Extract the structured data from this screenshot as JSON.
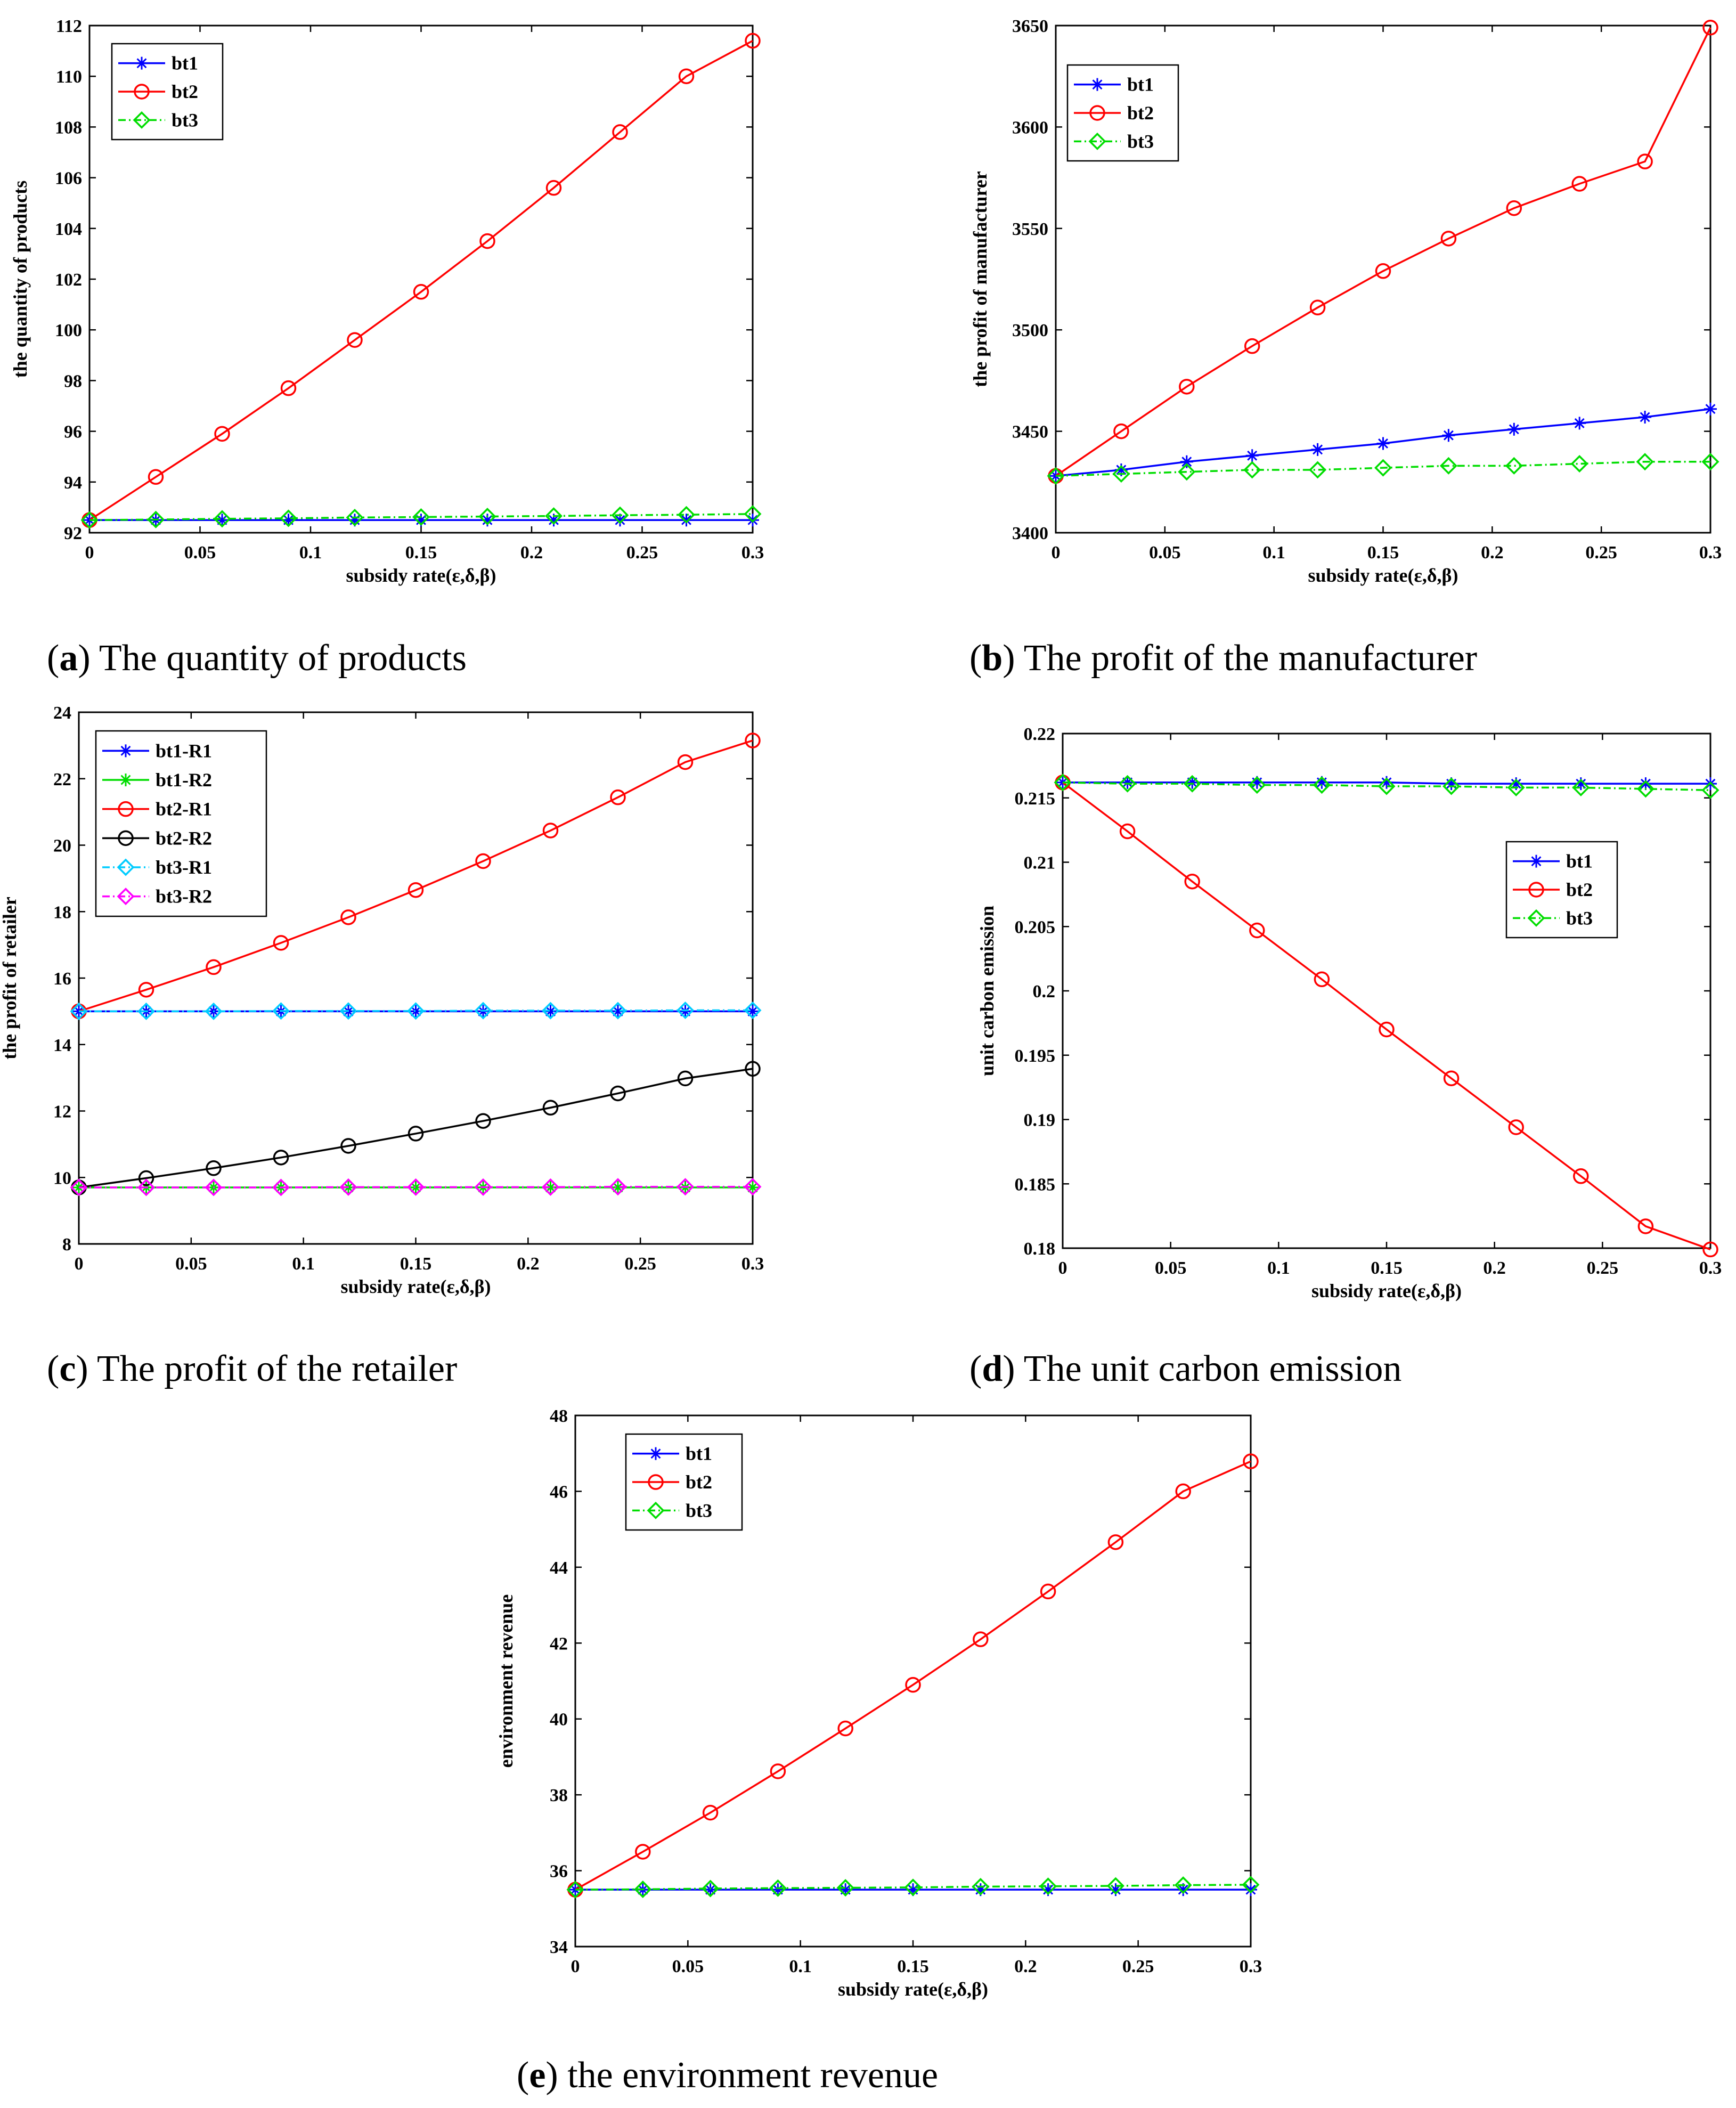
{
  "chart_data": [
    {
      "id": "a",
      "type": "line",
      "caption_letter": "a",
      "caption_text": "The quantity of products",
      "xlabel": "subsidy rate(ε,δ,β)",
      "ylabel": "the quantity of products",
      "xlim": [
        0,
        0.3
      ],
      "ylim": [
        92,
        112
      ],
      "xticks": [
        0,
        0.05,
        0.1,
        0.15,
        0.2,
        0.25,
        0.3
      ],
      "xtick_labels": [
        "0",
        "0.05",
        "0.1",
        "0.15",
        "0.2",
        "0.25",
        "0.3"
      ],
      "yticks": [
        92,
        94,
        96,
        98,
        100,
        102,
        104,
        106,
        108,
        110,
        112
      ],
      "ytick_labels": [
        "92",
        "94",
        "96",
        "98",
        "100",
        "102",
        "104",
        "106",
        "108",
        "110",
        "112"
      ],
      "legend_position": "top-left",
      "x": [
        0,
        0.03,
        0.06,
        0.09,
        0.12,
        0.15,
        0.18,
        0.21,
        0.24,
        0.27,
        0.3
      ],
      "series": [
        {
          "name": "bt1",
          "color": "#0000ff",
          "marker": "star",
          "dash": "solid",
          "values": [
            92.5,
            92.5,
            92.5,
            92.5,
            92.5,
            92.5,
            92.5,
            92.5,
            92.5,
            92.5,
            92.5
          ]
        },
        {
          "name": "bt2",
          "color": "#ff0000",
          "marker": "circle",
          "dash": "solid",
          "values": [
            92.5,
            94.2,
            95.9,
            97.7,
            99.6,
            101.5,
            103.5,
            105.6,
            107.8,
            110.0,
            111.4
          ]
        },
        {
          "name": "bt3",
          "color": "#00dd00",
          "marker": "diamond",
          "dash": "dashdot",
          "values": [
            92.5,
            92.52,
            92.55,
            92.57,
            92.6,
            92.62,
            92.64,
            92.66,
            92.69,
            92.71,
            92.74
          ]
        }
      ]
    },
    {
      "id": "b",
      "type": "line",
      "caption_letter": "b",
      "caption_text": "The profit of the manufacturer",
      "xlabel": "subsidy rate(ε,δ,β)",
      "ylabel": "the profit of manufacturer",
      "xlim": [
        0,
        0.3
      ],
      "ylim": [
        3400,
        3650
      ],
      "xticks": [
        0,
        0.05,
        0.1,
        0.15,
        0.2,
        0.25,
        0.3
      ],
      "xtick_labels": [
        "0",
        "0.05",
        "0.1",
        "0.15",
        "0.2",
        "0.25",
        "0.3"
      ],
      "yticks": [
        3400,
        3450,
        3500,
        3550,
        3600,
        3650
      ],
      "ytick_labels": [
        "3400",
        "3450",
        "3500",
        "3550",
        "3600",
        "3650"
      ],
      "legend_position": "top-left",
      "x": [
        0,
        0.03,
        0.06,
        0.09,
        0.12,
        0.15,
        0.18,
        0.21,
        0.24,
        0.27,
        0.3
      ],
      "series": [
        {
          "name": "bt1",
          "color": "#0000ff",
          "marker": "star",
          "dash": "solid",
          "values": [
            3428,
            3431,
            3435,
            3438,
            3441,
            3444,
            3448,
            3451,
            3454,
            3457,
            3461
          ]
        },
        {
          "name": "bt2",
          "color": "#ff0000",
          "marker": "circle",
          "dash": "solid",
          "values": [
            3428,
            3450,
            3472,
            3492,
            3511,
            3529,
            3545,
            3560,
            3572,
            3583,
            3649
          ]
        },
        {
          "name": "bt3",
          "color": "#00dd00",
          "marker": "diamond",
          "dash": "dashdot",
          "values": [
            3428,
            3429,
            3430,
            3431,
            3431,
            3432,
            3433,
            3433,
            3434,
            3435,
            3435
          ]
        }
      ]
    },
    {
      "id": "c",
      "type": "line",
      "caption_letter": "c",
      "caption_text": "The profit of the retailer",
      "xlabel": "subsidy rate(ε,δ,β)",
      "ylabel": "the profit of retailer",
      "xlim": [
        0,
        0.3
      ],
      "ylim": [
        8,
        24
      ],
      "xticks": [
        0,
        0.05,
        0.1,
        0.15,
        0.2,
        0.25,
        0.3
      ],
      "xtick_labels": [
        "0",
        "0.05",
        "0.1",
        "0.15",
        "0.2",
        "0.25",
        "0.3"
      ],
      "yticks": [
        8,
        10,
        12,
        14,
        16,
        18,
        20,
        22,
        24
      ],
      "ytick_labels": [
        "8",
        "10",
        "12",
        "14",
        "16",
        "18",
        "20",
        "22",
        "24"
      ],
      "legend_position": "top-left",
      "x": [
        0,
        0.03,
        0.06,
        0.09,
        0.12,
        0.15,
        0.18,
        0.21,
        0.24,
        0.27,
        0.3
      ],
      "series": [
        {
          "name": "bt1-R1",
          "color": "#0000ff",
          "marker": "star",
          "dash": "solid",
          "values": [
            15.0,
            15.0,
            15.0,
            15.0,
            15.0,
            15.0,
            15.0,
            15.0,
            15.0,
            15.0,
            15.0
          ]
        },
        {
          "name": "bt1-R2",
          "color": "#00dd00",
          "marker": "star",
          "dash": "solid",
          "values": [
            9.7,
            9.7,
            9.7,
            9.7,
            9.7,
            9.7,
            9.7,
            9.7,
            9.7,
            9.7,
            9.7
          ]
        },
        {
          "name": "bt2-R1",
          "color": "#ff0000",
          "marker": "circle",
          "dash": "solid",
          "values": [
            15.0,
            15.65,
            16.33,
            17.06,
            17.83,
            18.65,
            19.52,
            20.44,
            21.44,
            22.5,
            23.15
          ]
        },
        {
          "name": "bt2-R2",
          "color": "#000000",
          "marker": "circle",
          "dash": "solid",
          "values": [
            9.7,
            9.98,
            10.28,
            10.6,
            10.95,
            11.32,
            11.7,
            12.1,
            12.53,
            12.98,
            13.27
          ]
        },
        {
          "name": "bt3-R1",
          "color": "#00ccff",
          "marker": "diamond",
          "dash": "dashdot",
          "values": [
            15.0,
            15.0,
            15.0,
            15.01,
            15.01,
            15.01,
            15.02,
            15.02,
            15.02,
            15.03,
            15.03
          ]
        },
        {
          "name": "bt3-R2",
          "color": "#ff00ff",
          "marker": "diamond",
          "dash": "dashdot",
          "values": [
            9.7,
            9.7,
            9.7,
            9.7,
            9.71,
            9.71,
            9.71,
            9.71,
            9.72,
            9.72,
            9.72
          ]
        }
      ]
    },
    {
      "id": "d",
      "type": "line",
      "caption_letter": "d",
      "caption_text": "The unit carbon emission",
      "xlabel": "subsidy rate(ε,δ,β)",
      "ylabel": "unit carbon emission",
      "xlim": [
        0,
        0.3
      ],
      "ylim": [
        0.18,
        0.22
      ],
      "xticks": [
        0,
        0.05,
        0.1,
        0.15,
        0.2,
        0.25,
        0.3
      ],
      "xtick_labels": [
        "0",
        "0.05",
        "0.1",
        "0.15",
        "0.2",
        "0.25",
        "0.3"
      ],
      "yticks": [
        0.18,
        0.185,
        0.19,
        0.195,
        0.2,
        0.205,
        0.21,
        0.215,
        0.22
      ],
      "ytick_labels": [
        "0.18",
        "0.185",
        "0.19",
        "0.195",
        "0.2",
        "0.205",
        "0.21",
        "0.215",
        "0.22"
      ],
      "legend_position": "middle-right",
      "x": [
        0,
        0.03,
        0.06,
        0.09,
        0.12,
        0.15,
        0.18,
        0.21,
        0.24,
        0.27,
        0.3
      ],
      "series": [
        {
          "name": "bt1",
          "color": "#0000ff",
          "marker": "star",
          "dash": "solid",
          "values": [
            0.2162,
            0.2162,
            0.2162,
            0.2162,
            0.2162,
            0.2162,
            0.2161,
            0.2161,
            0.2161,
            0.2161,
            0.2161
          ]
        },
        {
          "name": "bt2",
          "color": "#ff0000",
          "marker": "circle",
          "dash": "solid",
          "values": [
            0.2162,
            0.2124,
            0.2085,
            0.2047,
            0.2009,
            0.197,
            0.1932,
            0.1894,
            0.1856,
            0.1817,
            0.1799
          ]
        },
        {
          "name": "bt3",
          "color": "#00dd00",
          "marker": "diamond",
          "dash": "dashdot",
          "values": [
            0.2162,
            0.2161,
            0.2161,
            0.216,
            0.216,
            0.2159,
            0.2159,
            0.2158,
            0.2158,
            0.2157,
            0.2156
          ]
        }
      ]
    },
    {
      "id": "e",
      "type": "line",
      "caption_letter": "e",
      "caption_text": "the environment revenue",
      "xlabel": "subsidy rate(ε,δ,β)",
      "ylabel": "environment revenue",
      "xlim": [
        0,
        0.3
      ],
      "ylim": [
        34,
        48
      ],
      "xticks": [
        0,
        0.05,
        0.1,
        0.15,
        0.2,
        0.25,
        0.3
      ],
      "xtick_labels": [
        "0",
        "0.05",
        "0.1",
        "0.15",
        "0.2",
        "0.25",
        "0.3"
      ],
      "yticks": [
        34,
        36,
        38,
        40,
        42,
        44,
        46,
        48
      ],
      "ytick_labels": [
        "34",
        "36",
        "38",
        "40",
        "42",
        "44",
        "46",
        "48"
      ],
      "legend_position": "top-left",
      "x": [
        0,
        0.03,
        0.06,
        0.09,
        0.12,
        0.15,
        0.18,
        0.21,
        0.24,
        0.27,
        0.3
      ],
      "series": [
        {
          "name": "bt1",
          "color": "#0000ff",
          "marker": "star",
          "dash": "solid",
          "values": [
            35.5,
            35.5,
            35.5,
            35.5,
            35.5,
            35.5,
            35.5,
            35.5,
            35.5,
            35.5,
            35.5
          ]
        },
        {
          "name": "bt2",
          "color": "#ff0000",
          "marker": "circle",
          "dash": "solid",
          "values": [
            35.5,
            36.5,
            37.53,
            38.62,
            39.75,
            40.9,
            42.1,
            43.36,
            44.66,
            46.0,
            46.79
          ]
        },
        {
          "name": "bt3",
          "color": "#00dd00",
          "marker": "diamond",
          "dash": "dashdot",
          "values": [
            35.5,
            35.51,
            35.53,
            35.54,
            35.55,
            35.56,
            35.58,
            35.59,
            35.6,
            35.62,
            35.63
          ]
        }
      ]
    }
  ]
}
